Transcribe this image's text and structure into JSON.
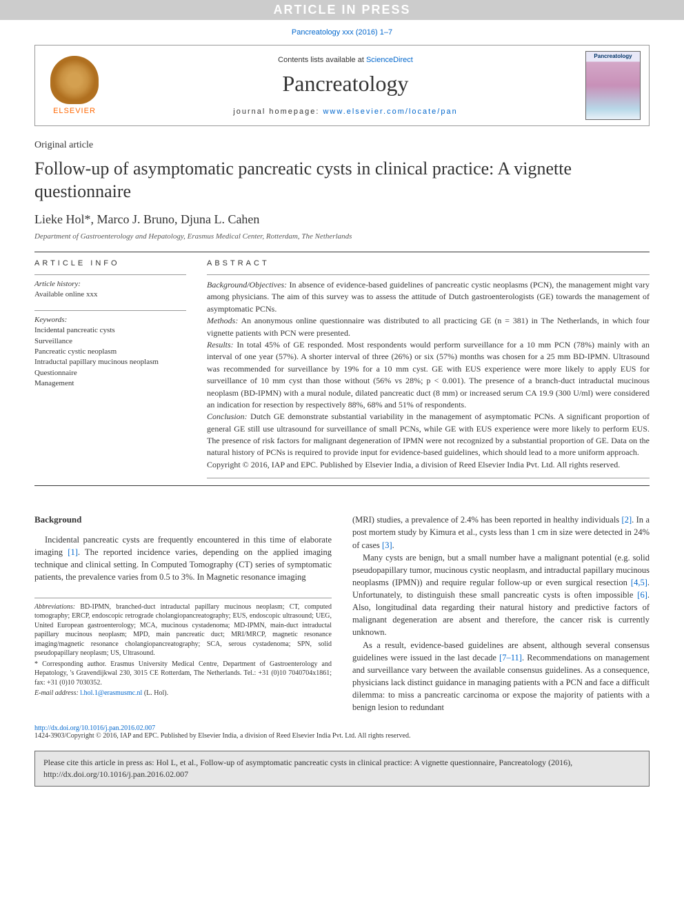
{
  "press_banner": "ARTICLE IN PRESS",
  "citation_top": "Pancreatology xxx (2016) 1–7",
  "header": {
    "elsevier": "ELSEVIER",
    "contents_prefix": "Contents lists available at ",
    "contents_link": "ScienceDirect",
    "journal": "Pancreatology",
    "homepage_prefix": "journal homepage: ",
    "homepage_link": "www.elsevier.com/locate/pan",
    "cover_title": "Pancreatology"
  },
  "article_type": "Original article",
  "title": "Follow-up of asymptomatic pancreatic cysts in clinical practice: A vignette questionnaire",
  "authors": "Lieke Hol*, Marco J. Bruno, Djuna L. Cahen",
  "affiliation": "Department of Gastroenterology and Hepatology, Erasmus Medical Center, Rotterdam, The Netherlands",
  "info": {
    "head": "ARTICLE INFO",
    "history_label": "Article history:",
    "history_value": "Available online xxx",
    "keywords_label": "Keywords:",
    "keywords": [
      "Incidental pancreatic cysts",
      "Surveillance",
      "Pancreatic cystic neoplasm",
      "Intraductal papillary mucinous neoplasm",
      "Questionnaire",
      "Management"
    ]
  },
  "abstract": {
    "head": "ABSTRACT",
    "segments": [
      {
        "h": "Background/Objectives:",
        "t": " In absence of evidence-based guidelines of pancreatic cystic neoplasms (PCN), the management might vary among physicians. The aim of this survey was to assess the attitude of Dutch gastroenterologists (GE) towards the management of asymptomatic PCNs."
      },
      {
        "h": "Methods:",
        "t": " An anonymous online questionnaire was distributed to all practicing GE (n = 381) in The Netherlands, in which four vignette patients with PCN were presented."
      },
      {
        "h": "Results:",
        "t": " In total 45% of GE responded. Most respondents would perform surveillance for a 10 mm PCN (78%) mainly with an interval of one year (57%). A shorter interval of three (26%) or six (57%) months was chosen for a 25 mm BD-IPMN. Ultrasound was recommended for surveillance by 19% for a 10 mm cyst. GE with EUS experience were more likely to apply EUS for surveillance of 10 mm cyst than those without (56% vs 28%; p < 0.001). The presence of a branch-duct intraductal mucinous neoplasm (BD-IPMN) with a mural nodule, dilated pancreatic duct (8 mm) or increased serum CA 19.9 (300 U/ml) were considered an indication for resection by respectively 88%, 68% and 51% of respondents."
      },
      {
        "h": "Conclusion:",
        "t": " Dutch GE demonstrate substantial variability in the management of asymptomatic PCNs. A significant proportion of general GE still use ultrasound for surveillance of small PCNs, while GE with EUS experience were more likely to perform EUS. The presence of risk factors for malignant degeneration of IPMN were not recognized by a substantial proportion of GE. Data on the natural history of PCNs is required to provide input for evidence-based guidelines, which should lead to a more uniform approach."
      }
    ],
    "copyright": "Copyright © 2016, IAP and EPC. Published by Elsevier India, a division of Reed Elsevier India Pvt. Ltd. All rights reserved."
  },
  "body": {
    "background_head": "Background",
    "left_paras": [
      "Incidental pancreatic cysts are frequently encountered in this time of elaborate imaging [1]. The reported incidence varies, depending on the applied imaging technique and clinical setting. In Computed Tomography (CT) series of symptomatic patients, the prevalence varies from 0.5 to 3%. In Magnetic resonance imaging"
    ],
    "right_paras": [
      "(MRI) studies, a prevalence of 2.4% has been reported in healthy individuals [2]. In a post mortem study by Kimura et al., cysts less than 1 cm in size were detected in 24% of cases [3].",
      "Many cysts are benign, but a small number have a malignant potential (e.g. solid pseudopapillary tumor, mucinous cystic neoplasm, and intraductal papillary mucinous neoplasms (IPMN)) and require regular follow-up or even surgical resection [4,5]. Unfortunately, to distinguish these small pancreatic cysts is often impossible [6]. Also, longitudinal data regarding their natural history and predictive factors of malignant degeneration are absent and therefore, the cancer risk is currently unknown.",
      "As a result, evidence-based guidelines are absent, although several consensus guidelines were issued in the last decade [7–11]. Recommendations on management and surveillance vary between the available consensus guidelines. As a consequence, physicians lack distinct guidance in managing patients with a PCN and face a difficult dilemma: to miss a pancreatic carcinoma or expose the majority of patients with a benign lesion to redundant"
    ]
  },
  "footnotes": {
    "abbrev_label": "Abbreviations:",
    "abbrev_text": " BD-IPMN, branched-duct intraductal papillary mucinous neoplasm; CT, computed tomography; ERCP, endoscopic retrograde cholangiopancreatography; EUS, endoscopic ultrasound; UEG, United European gastroenterology; MCA, mucinous cystadenoma; MD-IPMN, main-duct intraductal papillary mucinous neoplasm; MPD, main pancreatic duct; MRI/MRCP, magnetic resonance imaging/magnetic resonance cholangiopancreatography; SCA, serous cystadenoma; SPN, solid pseudopapillary neoplasm; US, Ultrasound.",
    "corr": "* Corresponding author. Erasmus University Medical Centre, Department of Gastroenterology and Hepatology, 's Gravendijkwal 230, 3015 CE Rotterdam, The Netherlands. Tel.: +31 (0)10 7040704x1861; fax: +31 (0)10 7030352.",
    "email_label": "E-mail address: ",
    "email": "l.hol.1@erasmusmc.nl",
    "email_suffix": " (L. Hol)."
  },
  "doi": {
    "url": "http://dx.doi.org/10.1016/j.pan.2016.02.007",
    "copyright": "1424-3903/Copyright © 2016, IAP and EPC. Published by Elsevier India, a division of Reed Elsevier India Pvt. Ltd. All rights reserved."
  },
  "cite_box": "Please cite this article in press as: Hol L, et al., Follow-up of asymptomatic pancreatic cysts in clinical practice: A vignette questionnaire, Pancreatology (2016), http://dx.doi.org/10.1016/j.pan.2016.02.007",
  "colors": {
    "link": "#0066cc",
    "banner_bg": "#cccccc",
    "elsevier_orange": "#ff6600",
    "rule": "#333333",
    "citebox_bg": "#e6e6e6"
  }
}
